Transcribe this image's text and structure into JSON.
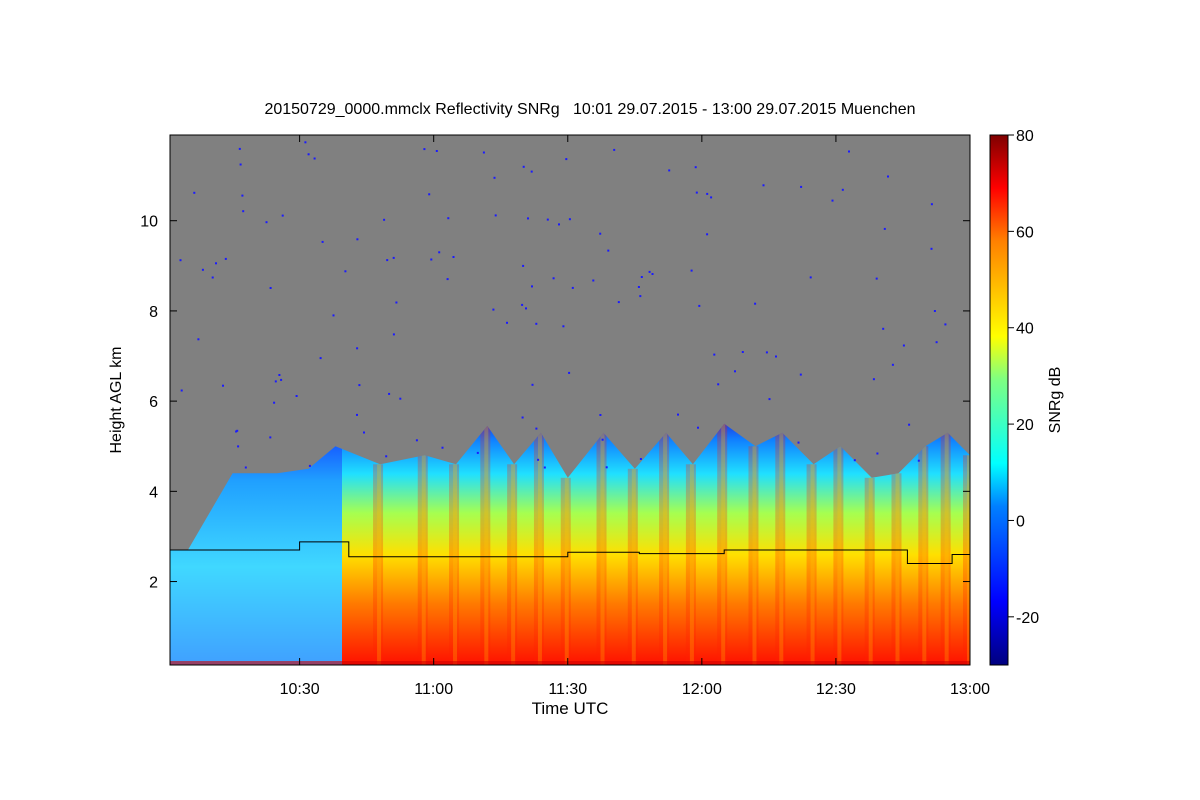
{
  "chart_data": {
    "type": "heatmap",
    "title": "20150729_0000.mmclx Reflectivity SNRg   10:01 29.07.2015 - 13:00 29.07.2015 Muenchen",
    "xlabel": "Time UTC",
    "ylabel": "Height AGL km",
    "colorbar_label": "SNRg dB",
    "xlim": [
      "10:01",
      "13:00"
    ],
    "ylim": [
      0.15,
      11.9
    ],
    "x_ticks": [
      "10:30",
      "11:00",
      "11:30",
      "12:00",
      "12:30",
      "13:00"
    ],
    "y_ticks": [
      2,
      4,
      6,
      8,
      10
    ],
    "colorbar_range": [
      -30,
      80
    ],
    "colorbar_ticks": [
      -20,
      0,
      20,
      40,
      60,
      80
    ],
    "colormap": "jet",
    "no_data_color": "#808080",
    "echo_top_profile_km": [
      {
        "time": "10:05",
        "top": 2.7
      },
      {
        "time": "10:15",
        "top": 4.4
      },
      {
        "time": "10:25",
        "top": 4.4
      },
      {
        "time": "10:32",
        "top": 4.5
      },
      {
        "time": "10:38",
        "top": 5.0
      },
      {
        "time": "10:48",
        "top": 4.6
      },
      {
        "time": "10:58",
        "top": 4.8
      },
      {
        "time": "11:05",
        "top": 4.6
      },
      {
        "time": "11:12",
        "top": 5.45
      },
      {
        "time": "11:18",
        "top": 4.6
      },
      {
        "time": "11:24",
        "top": 5.3
      },
      {
        "time": "11:30",
        "top": 4.3
      },
      {
        "time": "11:38",
        "top": 5.3
      },
      {
        "time": "11:45",
        "top": 4.5
      },
      {
        "time": "11:52",
        "top": 5.3
      },
      {
        "time": "11:58",
        "top": 4.6
      },
      {
        "time": "12:05",
        "top": 5.5
      },
      {
        "time": "12:12",
        "top": 5.0
      },
      {
        "time": "12:18",
        "top": 5.3
      },
      {
        "time": "12:25",
        "top": 4.6
      },
      {
        "time": "12:31",
        "top": 5.0
      },
      {
        "time": "12:38",
        "top": 4.3
      },
      {
        "time": "12:44",
        "top": 4.4
      },
      {
        "time": "12:50",
        "top": 5.0
      },
      {
        "time": "12:55",
        "top": 5.3
      },
      {
        "time": "13:00",
        "top": 4.8
      }
    ],
    "cloud_base_line_km": [
      {
        "time": "10:01",
        "base": 2.7
      },
      {
        "time": "10:30",
        "base": 2.88
      },
      {
        "time": "10:41",
        "base": 2.55
      },
      {
        "time": "11:30",
        "base": 2.65
      },
      {
        "time": "11:46",
        "base": 2.62
      },
      {
        "time": "12:05",
        "base": 2.7
      },
      {
        "time": "12:36",
        "base": 2.7
      },
      {
        "time": "12:46",
        "base": 2.4
      },
      {
        "time": "12:56",
        "base": 2.6
      },
      {
        "time": "13:00",
        "base": 2.6
      }
    ]
  }
}
